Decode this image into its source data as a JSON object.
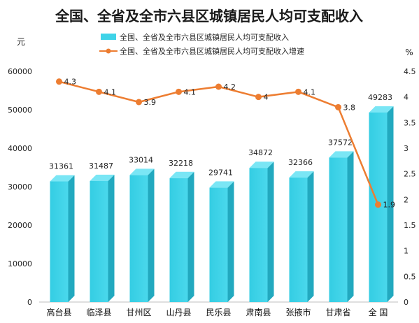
{
  "chart_data": {
    "type": "bar+line",
    "title": "全国、全省及全市六县区城镇居民人均可支配收入",
    "categories": [
      "高台县",
      "临泽县",
      "甘州区",
      "山丹县",
      "民乐县",
      "肃南县",
      "张掖市",
      "甘肃省",
      "全 国"
    ],
    "series": [
      {
        "name": "全国、全省及全市六县区城镇居民人均可支配收入",
        "type": "bar",
        "axis": "left",
        "values": [
          31361,
          31487,
          33014,
          32218,
          29741,
          34872,
          32366,
          37572,
          49283
        ],
        "labels": [
          "31361",
          "31487",
          "33014",
          "32218",
          "29741",
          "34872",
          "32366",
          "37572",
          "49283"
        ],
        "color": "#3fd3e8"
      },
      {
        "name": "全国、全省及全市六县区城镇居民人均可支配收入增速",
        "type": "line",
        "axis": "right",
        "values": [
          4.3,
          4.1,
          3.9,
          4.1,
          4.2,
          4.0,
          4.1,
          3.8,
          1.9
        ],
        "labels": [
          "4.3",
          "4.1",
          "3.9",
          "4.1",
          "4.2",
          "4",
          "4.1",
          "3.8",
          "1.9"
        ],
        "color": "#ed7d31"
      }
    ],
    "left_axis": {
      "unit": "元",
      "ylim": [
        0,
        60000
      ],
      "ticks": [
        "0",
        "10000",
        "20000",
        "30000",
        "40000",
        "50000",
        "60000"
      ]
    },
    "right_axis": {
      "unit": "%",
      "ylim": [
        0,
        4.5
      ],
      "ticks": [
        "0",
        "0.5",
        "1",
        "1.5",
        "2",
        "2.5",
        "3",
        "3.5",
        "4",
        "4.5"
      ]
    },
    "grid": false,
    "legend_position": "top"
  }
}
